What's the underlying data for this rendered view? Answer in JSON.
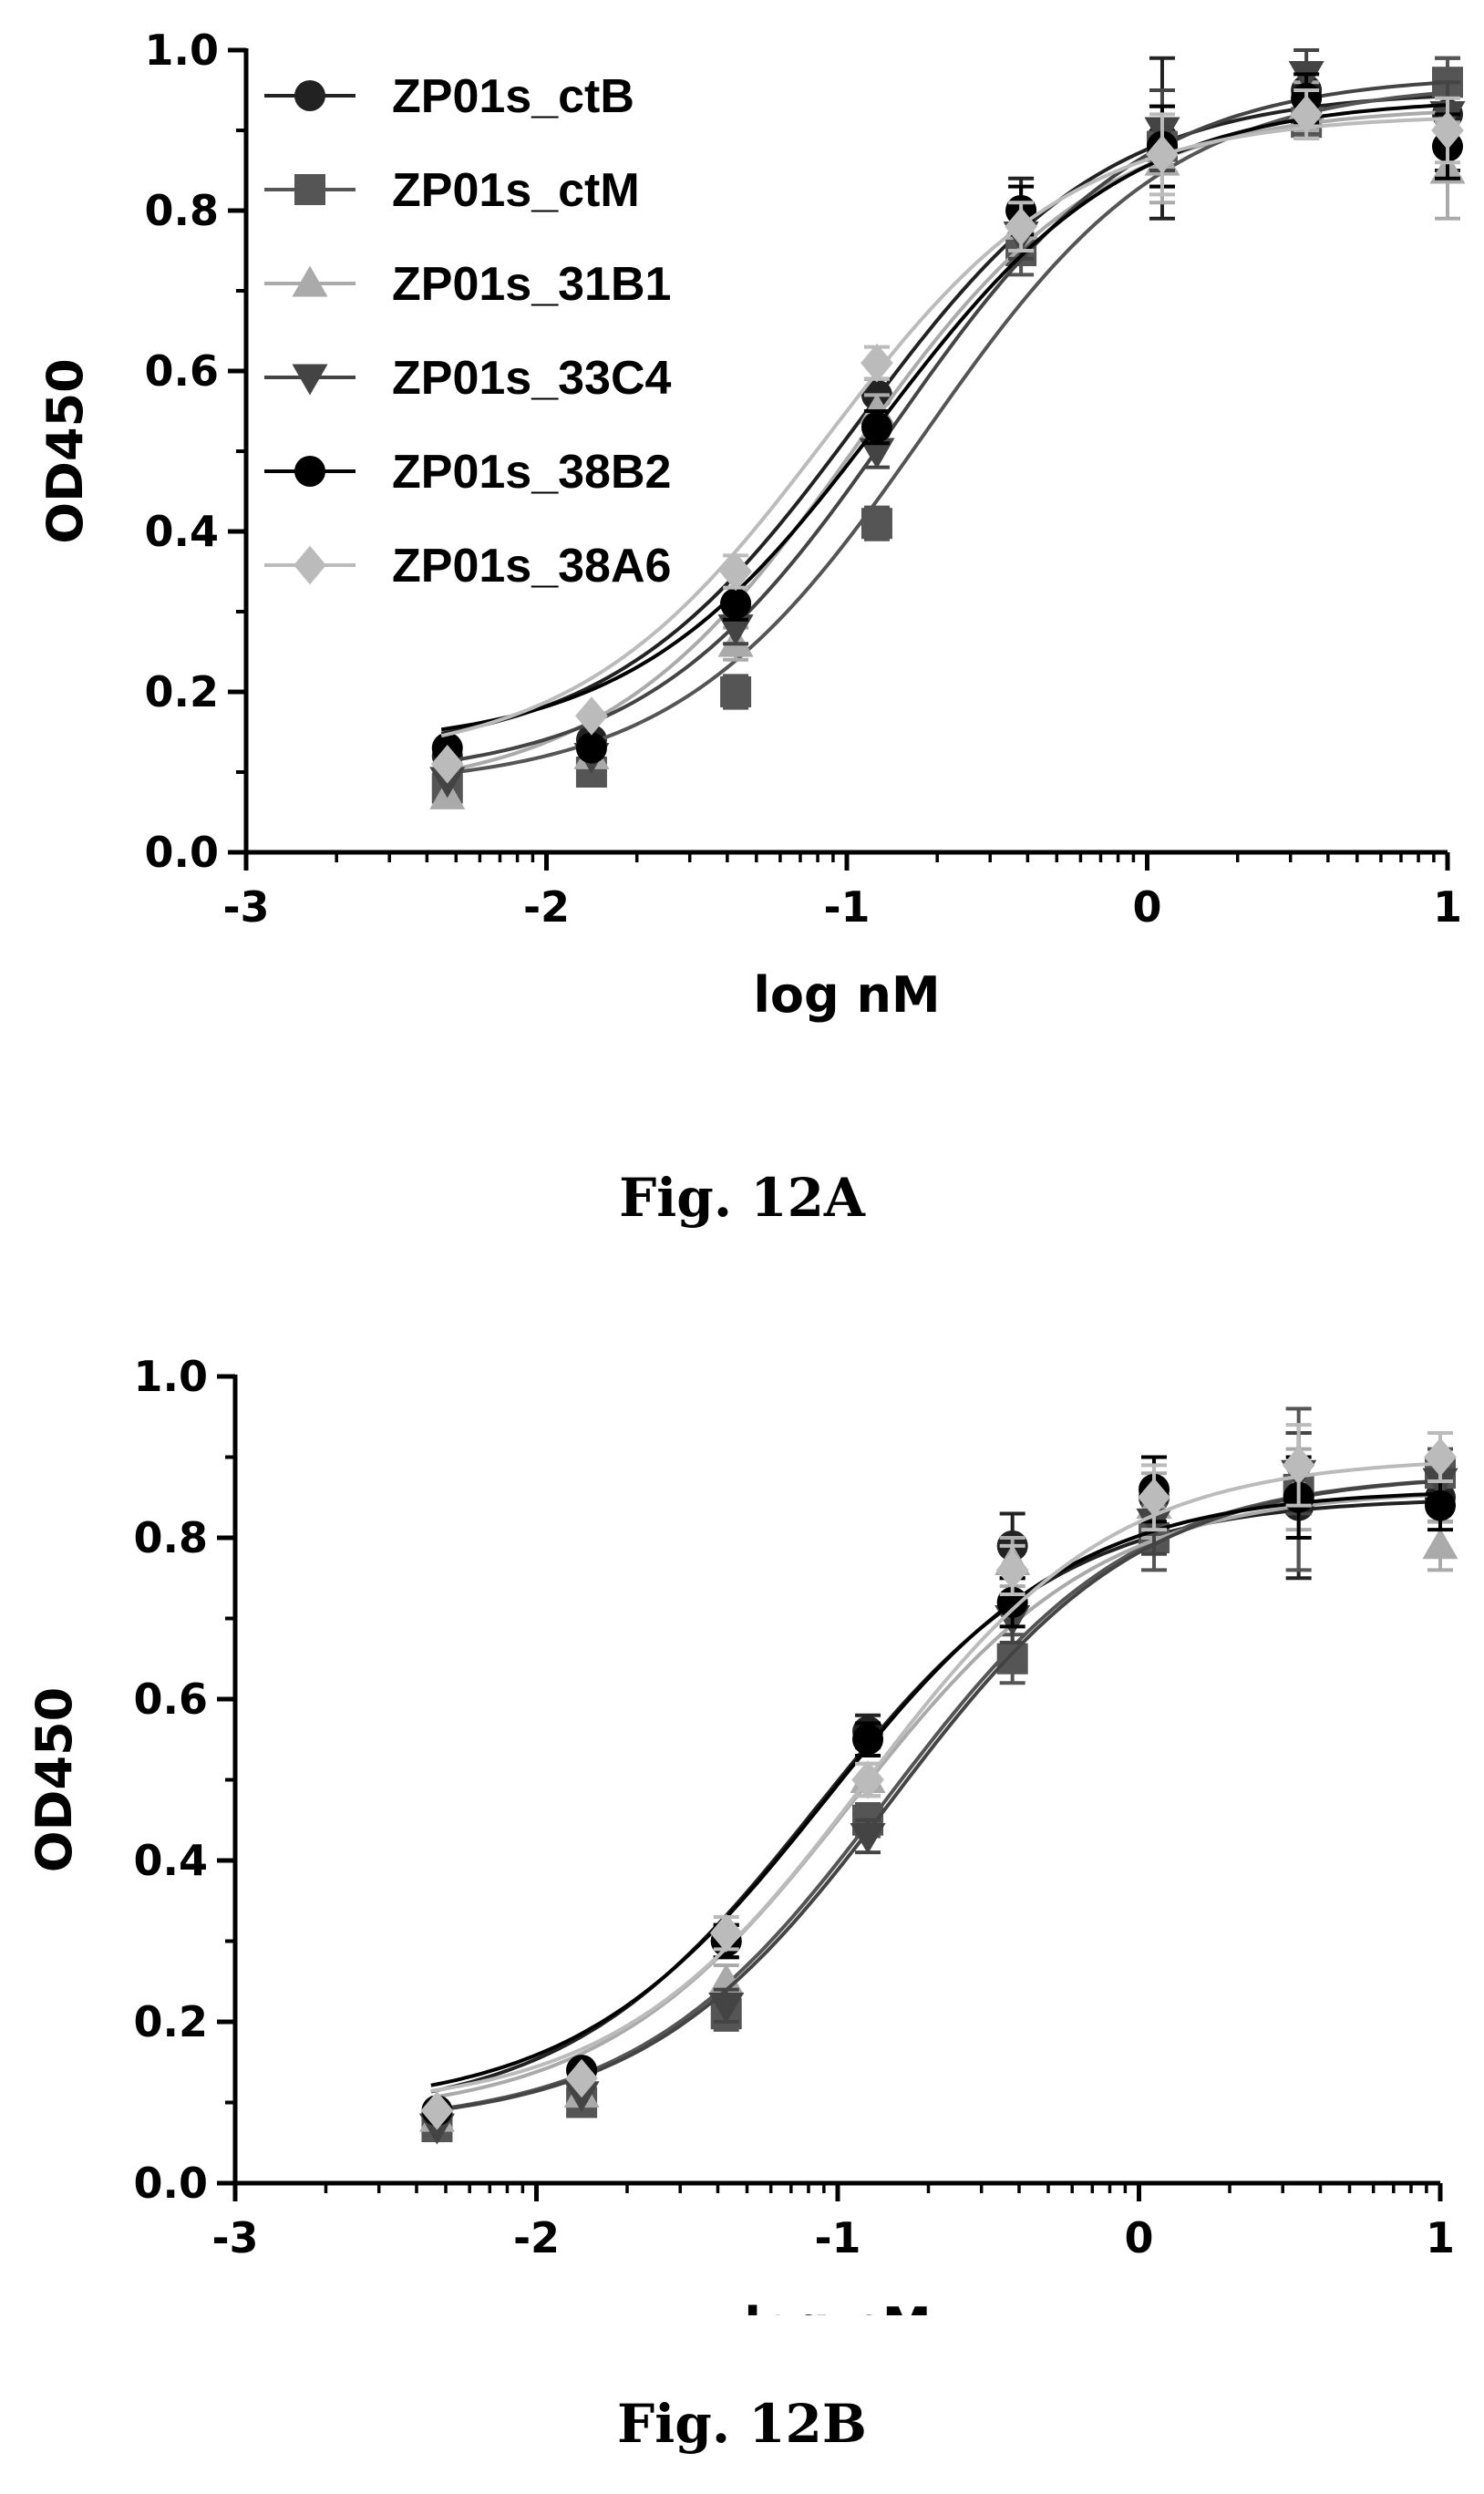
{
  "figures": [
    {
      "caption": "Fig. 12A"
    },
    {
      "caption": "Fig. 12B"
    }
  ],
  "chart_data": [
    {
      "type": "scatter",
      "title": "",
      "xlabel": "log nM",
      "ylabel": "OD450",
      "xlim": [
        -3,
        1
      ],
      "ylim": [
        0,
        1.0
      ],
      "xticks": [
        "-3",
        "-2",
        "-1",
        "0",
        "1"
      ],
      "yticks": [
        "0.0",
        "0.2",
        "0.4",
        "0.6",
        "0.8",
        "1.0"
      ],
      "grid": false,
      "legend": "top-left",
      "x": [
        -2.33,
        -1.85,
        -1.37,
        -0.9,
        -0.42,
        0.05,
        0.53,
        1.0
      ],
      "series": [
        {
          "name": "ZP01s_ctB",
          "marker": "circle",
          "color": "#222222",
          "values": [
            0.12,
            0.14,
            0.31,
            0.57,
            0.8,
            0.89,
            0.95,
            0.92
          ],
          "errors": [
            0.01,
            0.01,
            0.02,
            0.02,
            0.04,
            0.1,
            0.03,
            0.07
          ]
        },
        {
          "name": "ZP01s_ctM",
          "marker": "square",
          "color": "#555555",
          "values": [
            0.08,
            0.1,
            0.2,
            0.41,
            0.75,
            0.88,
            0.91,
            0.96
          ],
          "errors": [
            0.01,
            0.01,
            0.02,
            0.02,
            0.03,
            0.05,
            0.02,
            0.03
          ]
        },
        {
          "name": "ZP01s_31B1",
          "marker": "triangle",
          "color": "#aaaaaa",
          "values": [
            0.07,
            0.12,
            0.26,
            0.55,
            0.78,
            0.86,
            0.93,
            0.85
          ],
          "errors": [
            0.01,
            0.01,
            0.02,
            0.02,
            0.03,
            0.05,
            0.03,
            0.06
          ]
        },
        {
          "name": "ZP01s_33C4",
          "marker": "triangle-down",
          "color": "#444444",
          "values": [
            0.09,
            0.12,
            0.28,
            0.5,
            0.77,
            0.9,
            0.97,
            0.92
          ],
          "errors": [
            0.01,
            0.01,
            0.02,
            0.02,
            0.03,
            0.05,
            0.03,
            0.04
          ]
        },
        {
          "name": "ZP01s_38B2",
          "marker": "circle",
          "color": "#000000",
          "values": [
            0.13,
            0.13,
            0.31,
            0.53,
            0.8,
            0.88,
            0.94,
            0.88
          ],
          "errors": [
            0.01,
            0.01,
            0.02,
            0.02,
            0.03,
            0.05,
            0.03,
            0.04
          ]
        },
        {
          "name": "ZP01s_38A6",
          "marker": "diamond",
          "color": "#bbbbbb",
          "values": [
            0.11,
            0.17,
            0.35,
            0.61,
            0.78,
            0.87,
            0.92,
            0.9
          ],
          "errors": [
            0.01,
            0.01,
            0.02,
            0.02,
            0.03,
            0.05,
            0.03,
            0.04
          ]
        }
      ]
    },
    {
      "type": "scatter",
      "title": "",
      "xlabel": "log nM",
      "ylabel": "OD450",
      "xlim": [
        -3,
        1
      ],
      "ylim": [
        0,
        1.0
      ],
      "xticks": [
        "-3",
        "-2",
        "-1",
        "0",
        "1"
      ],
      "yticks": [
        "0.0",
        "0.2",
        "0.4",
        "0.6",
        "0.8",
        "1.0"
      ],
      "grid": false,
      "legend": "none",
      "x": [
        -2.33,
        -1.85,
        -1.37,
        -0.9,
        -0.42,
        0.05,
        0.53,
        1.0
      ],
      "series": [
        {
          "marker": "circle",
          "color": "#222222",
          "values": [
            0.08,
            0.14,
            0.3,
            0.56,
            0.79,
            0.85,
            0.84,
            0.85
          ],
          "errors": [
            0.01,
            0.01,
            0.02,
            0.02,
            0.04,
            0.05,
            0.09,
            0.03
          ]
        },
        {
          "marker": "square",
          "color": "#555555",
          "values": [
            0.07,
            0.1,
            0.21,
            0.45,
            0.65,
            0.8,
            0.86,
            0.88
          ],
          "errors": [
            0.01,
            0.01,
            0.02,
            0.02,
            0.03,
            0.04,
            0.1,
            0.03
          ]
        },
        {
          "marker": "triangle",
          "color": "#aaaaaa",
          "values": [
            0.08,
            0.11,
            0.25,
            0.5,
            0.77,
            0.84,
            0.86,
            0.79
          ],
          "errors": [
            0.01,
            0.01,
            0.02,
            0.02,
            0.03,
            0.04,
            0.05,
            0.03
          ]
        },
        {
          "marker": "triangle-down",
          "color": "#444444",
          "values": [
            0.07,
            0.11,
            0.22,
            0.43,
            0.7,
            0.82,
            0.88,
            0.87
          ],
          "errors": [
            0.01,
            0.01,
            0.02,
            0.02,
            0.03,
            0.04,
            0.05,
            0.03
          ]
        },
        {
          "marker": "circle",
          "color": "#000000",
          "values": [
            0.09,
            0.14,
            0.3,
            0.55,
            0.72,
            0.86,
            0.85,
            0.84
          ],
          "errors": [
            0.01,
            0.01,
            0.02,
            0.02,
            0.03,
            0.04,
            0.05,
            0.03
          ]
        },
        {
          "marker": "diamond",
          "color": "#bbbbbb",
          "values": [
            0.09,
            0.13,
            0.31,
            0.5,
            0.76,
            0.85,
            0.89,
            0.9
          ],
          "errors": [
            0.01,
            0.01,
            0.02,
            0.02,
            0.03,
            0.04,
            0.05,
            0.03
          ]
        }
      ]
    }
  ]
}
